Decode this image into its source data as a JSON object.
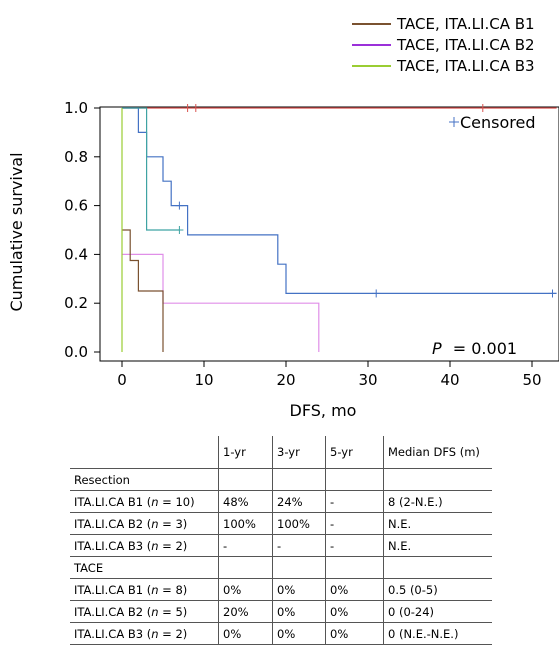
{
  "chart_data": {
    "type": "line",
    "subtype": "kaplan-meier step",
    "xlabel": "DFS, mo",
    "ylabel": "Cumulative survival",
    "xlim": [
      -3,
      53
    ],
    "ylim": [
      0,
      1.05
    ],
    "xticks": [
      0,
      10,
      20,
      30,
      40,
      50
    ],
    "yticks": [
      "0.0",
      "0.2",
      "0.4",
      "0.6",
      "0.8",
      "1.0"
    ],
    "grid": false,
    "legend_position": "top-right",
    "p_value_label": "P",
    "p_value_text": "= 0.001",
    "censored_label": "Censored",
    "series": [
      {
        "name": "",
        "color": "#d9534f",
        "points": [
          [
            0,
            1
          ],
          [
            53,
            1
          ]
        ],
        "censored": [
          [
            8,
            1
          ],
          [
            9,
            1
          ],
          [
            44,
            1
          ]
        ]
      },
      {
        "name": "",
        "color": "#4472c4",
        "points": [
          [
            0,
            1
          ],
          [
            2,
            1
          ],
          [
            2,
            0.9
          ],
          [
            3,
            0.9
          ],
          [
            3,
            0.8
          ],
          [
            5,
            0.8
          ],
          [
            5,
            0.7
          ],
          [
            6,
            0.7
          ],
          [
            6,
            0.6
          ],
          [
            8,
            0.6
          ],
          [
            8,
            0.48
          ],
          [
            19,
            0.48
          ],
          [
            19,
            0.36
          ],
          [
            20,
            0.36
          ],
          [
            20,
            0.24
          ],
          [
            53,
            0.24
          ]
        ],
        "censored": [
          [
            7,
            0.6
          ],
          [
            31,
            0.24
          ],
          [
            52.5,
            0.24
          ]
        ]
      },
      {
        "name": "",
        "color": "#3fa3a3",
        "points": [
          [
            0,
            1
          ],
          [
            3,
            1
          ],
          [
            3,
            0.5
          ],
          [
            7,
            0.5
          ]
        ],
        "censored": [
          [
            7,
            0.5
          ]
        ]
      },
      {
        "name": "",
        "color": "#e08fe8",
        "points": [
          [
            0,
            0.4
          ],
          [
            5,
            0.4
          ],
          [
            5,
            0.2
          ],
          [
            24,
            0.2
          ],
          [
            24,
            0
          ]
        ],
        "censored": []
      },
      {
        "name": "TACE, ITA.LI.CA B1",
        "color": "#7a5230",
        "points": [
          [
            0,
            0.5
          ],
          [
            1,
            0.5
          ],
          [
            1,
            0.375
          ],
          [
            2,
            0.375
          ],
          [
            2,
            0.25
          ],
          [
            5,
            0.25
          ],
          [
            5,
            0
          ]
        ],
        "censored": []
      },
      {
        "name": "TACE, ITA.LI.CA B2",
        "color": "#9b30d9",
        "points": [],
        "censored": []
      },
      {
        "name": "TACE, ITA.LI.CA B3",
        "color": "#9acd32",
        "points": [
          [
            0,
            1
          ],
          [
            0,
            0
          ]
        ],
        "censored": []
      }
    ]
  },
  "table": {
    "headers": [
      "",
      "1-yr",
      "3-yr",
      "5-yr",
      "Median DFS (m)"
    ],
    "rows": [
      {
        "group": true,
        "label": "Resection",
        "cells": [
          "",
          "",
          "",
          ""
        ]
      },
      {
        "group": false,
        "label": "ITA.LI.CA B1 (",
        "n_symbol": "n",
        "n_value": " = 10)",
        "cells": [
          "48%",
          "24%",
          "-",
          "8 (2-N.E.)"
        ]
      },
      {
        "group": false,
        "label": "ITA.LI.CA B2 (",
        "n_symbol": "n",
        "n_value": " = 3)",
        "cells": [
          "100%",
          "100%",
          "-",
          "N.E."
        ]
      },
      {
        "group": false,
        "label": "ITA.LI.CA B3 (",
        "n_symbol": "n",
        "n_value": " = 2)",
        "cells": [
          "-",
          "-",
          "-",
          "N.E."
        ]
      },
      {
        "group": true,
        "label": "TACE",
        "cells": [
          "",
          "",
          "",
          ""
        ]
      },
      {
        "group": false,
        "label": "ITA.LI.CA B1 (",
        "n_symbol": "n",
        "n_value": " = 8)",
        "cells": [
          "0%",
          "0%",
          "0%",
          "0.5 (0-5)"
        ]
      },
      {
        "group": false,
        "label": "ITA.LI.CA B2 (",
        "n_symbol": "n",
        "n_value": " = 5)",
        "cells": [
          "20%",
          "0%",
          "0%",
          "0 (0-24)"
        ]
      },
      {
        "group": false,
        "label": "ITA.LI.CA B3 (",
        "n_symbol": "n",
        "n_value": " = 2)",
        "cells": [
          "0%",
          "0%",
          "0%",
          "0 (N.E.-N.E.)"
        ]
      }
    ]
  }
}
